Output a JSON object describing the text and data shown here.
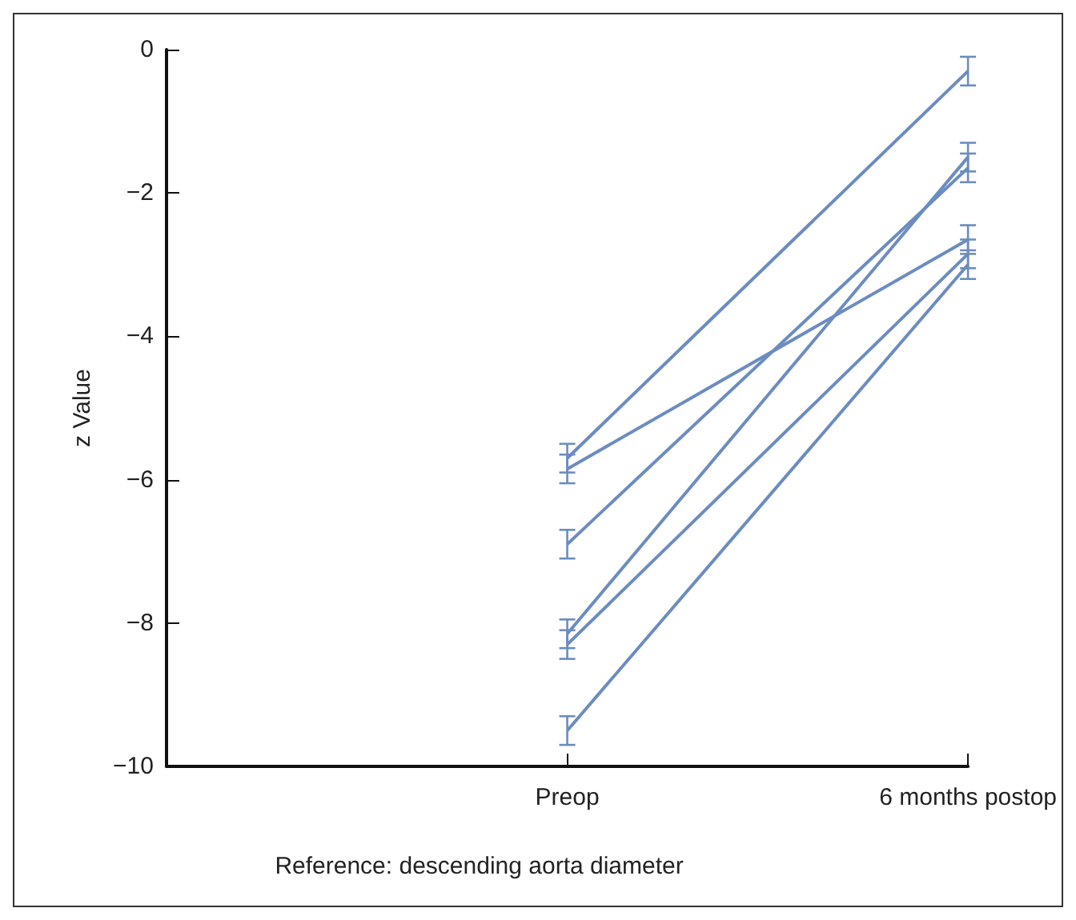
{
  "chart_data": {
    "type": "line",
    "ylabel": "z Value",
    "xlabel": "Reference: descending aorta diameter",
    "categories": [
      "Preop",
      "6 months postop"
    ],
    "ylim": [
      -10,
      0
    ],
    "yticks": [
      -10,
      -8,
      -6,
      -4,
      -2,
      0
    ],
    "grid": false,
    "marker": "none",
    "line_style": "solid",
    "series": [
      {
        "color": "#6c8cc0",
        "values": [
          -5.7,
          -0.3
        ],
        "errors": [
          0.2,
          0.2
        ]
      },
      {
        "color": "#6c8cc0",
        "values": [
          -5.85,
          -2.65
        ],
        "errors": [
          0.2,
          0.2
        ]
      },
      {
        "color": "#6c8cc0",
        "values": [
          -6.9,
          -1.65
        ],
        "errors": [
          0.2,
          0.2
        ]
      },
      {
        "color": "#6c8cc0",
        "values": [
          -8.15,
          -1.5
        ],
        "errors": [
          0.2,
          0.2
        ]
      },
      {
        "color": "#6c8cc0",
        "values": [
          -8.3,
          -2.85
        ],
        "errors": [
          0.2,
          0.2
        ]
      },
      {
        "color": "#6c8cc0",
        "values": [
          -9.5,
          -3.0
        ],
        "errors": [
          0.2,
          0.2
        ]
      }
    ]
  }
}
